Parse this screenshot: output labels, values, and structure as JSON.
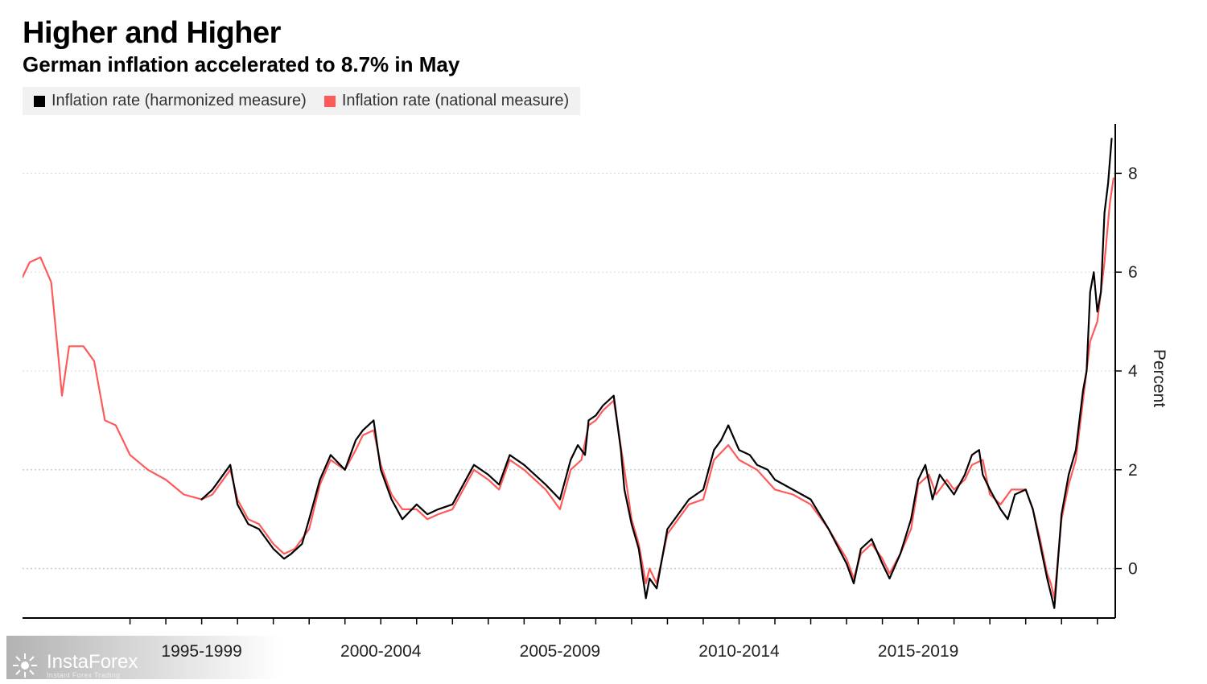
{
  "title": "Higher and Higher",
  "subtitle": "German inflation accelerated to 8.7% in May",
  "legend": {
    "series1": {
      "label": "Inflation rate (harmonized measure)",
      "color": "#000000"
    },
    "series2": {
      "label": "Inflation rate (national measure)",
      "color": "#ff5a5a"
    }
  },
  "watermark": {
    "main": "InstaForex",
    "sub": "Instant Forex Trading"
  },
  "chart": {
    "type": "line",
    "background_color": "#ffffff",
    "grid_color": "#d9d9d9",
    "grid_dash": "2,3",
    "reference_lines": [
      0,
      2
    ],
    "reference_color": "#c8c8c8",
    "axis_color": "#000000",
    "ylabel": "Percent",
    "ylim": [
      -1,
      9
    ],
    "yticks": [
      0,
      2,
      4,
      6,
      8
    ],
    "xlim": [
      1992,
      2022.5
    ],
    "xaxis_groups": [
      {
        "label": "1995-1999",
        "at": 1997
      },
      {
        "label": "2000-2004",
        "at": 2002
      },
      {
        "label": "2005-2009",
        "at": 2007
      },
      {
        "label": "2010-2014",
        "at": 2012
      },
      {
        "label": "2015-2019",
        "at": 2017
      }
    ],
    "tick_years": [
      1995,
      1996,
      1997,
      1998,
      1999,
      2000,
      2001,
      2002,
      2003,
      2004,
      2005,
      2006,
      2007,
      2008,
      2009,
      2010,
      2011,
      2012,
      2013,
      2014,
      2015,
      2016,
      2017,
      2018,
      2019,
      2020,
      2021,
      2022
    ],
    "line_width": 2.2,
    "title_fontsize": 38,
    "subtitle_fontsize": 26,
    "label_fontsize": 21,
    "series": {
      "national": {
        "color": "#ff5a5a",
        "data": [
          [
            1992.0,
            5.9
          ],
          [
            1992.2,
            6.2
          ],
          [
            1992.5,
            6.3
          ],
          [
            1992.8,
            5.8
          ],
          [
            1993.0,
            4.3
          ],
          [
            1993.1,
            3.5
          ],
          [
            1993.3,
            4.5
          ],
          [
            1993.7,
            4.5
          ],
          [
            1994.0,
            4.2
          ],
          [
            1994.3,
            3.0
          ],
          [
            1994.6,
            2.9
          ],
          [
            1995.0,
            2.3
          ],
          [
            1995.5,
            2.0
          ],
          [
            1996.0,
            1.8
          ],
          [
            1996.5,
            1.5
          ],
          [
            1997.0,
            1.4
          ],
          [
            1997.3,
            1.5
          ],
          [
            1997.5,
            1.7
          ],
          [
            1997.8,
            2.0
          ],
          [
            1998.0,
            1.4
          ],
          [
            1998.3,
            1.0
          ],
          [
            1998.6,
            0.9
          ],
          [
            1999.0,
            0.5
          ],
          [
            1999.3,
            0.3
          ],
          [
            1999.6,
            0.4
          ],
          [
            2000.0,
            0.8
          ],
          [
            2000.3,
            1.7
          ],
          [
            2000.6,
            2.2
          ],
          [
            2001.0,
            2.0
          ],
          [
            2001.3,
            2.4
          ],
          [
            2001.5,
            2.7
          ],
          [
            2001.8,
            2.8
          ],
          [
            2002.0,
            2.1
          ],
          [
            2002.3,
            1.5
          ],
          [
            2002.6,
            1.2
          ],
          [
            2003.0,
            1.2
          ],
          [
            2003.3,
            1.0
          ],
          [
            2003.6,
            1.1
          ],
          [
            2004.0,
            1.2
          ],
          [
            2004.3,
            1.6
          ],
          [
            2004.6,
            2.0
          ],
          [
            2005.0,
            1.8
          ],
          [
            2005.3,
            1.6
          ],
          [
            2005.6,
            2.2
          ],
          [
            2006.0,
            2.0
          ],
          [
            2006.3,
            1.8
          ],
          [
            2006.6,
            1.6
          ],
          [
            2007.0,
            1.2
          ],
          [
            2007.3,
            2.0
          ],
          [
            2007.6,
            2.2
          ],
          [
            2007.8,
            2.9
          ],
          [
            2008.0,
            3.0
          ],
          [
            2008.2,
            3.2
          ],
          [
            2008.5,
            3.4
          ],
          [
            2008.8,
            2.0
          ],
          [
            2009.0,
            1.0
          ],
          [
            2009.2,
            0.5
          ],
          [
            2009.4,
            -0.3
          ],
          [
            2009.5,
            0.0
          ],
          [
            2009.7,
            -0.3
          ],
          [
            2010.0,
            0.7
          ],
          [
            2010.3,
            1.0
          ],
          [
            2010.6,
            1.3
          ],
          [
            2011.0,
            1.4
          ],
          [
            2011.3,
            2.2
          ],
          [
            2011.7,
            2.5
          ],
          [
            2012.0,
            2.2
          ],
          [
            2012.5,
            2.0
          ],
          [
            2013.0,
            1.6
          ],
          [
            2013.5,
            1.5
          ],
          [
            2014.0,
            1.3
          ],
          [
            2014.5,
            0.8
          ],
          [
            2015.0,
            0.2
          ],
          [
            2015.2,
            -0.2
          ],
          [
            2015.4,
            0.3
          ],
          [
            2015.7,
            0.5
          ],
          [
            2016.0,
            0.2
          ],
          [
            2016.2,
            -0.1
          ],
          [
            2016.5,
            0.3
          ],
          [
            2016.8,
            0.8
          ],
          [
            2017.0,
            1.7
          ],
          [
            2017.3,
            1.9
          ],
          [
            2017.5,
            1.5
          ],
          [
            2017.8,
            1.8
          ],
          [
            2018.0,
            1.6
          ],
          [
            2018.3,
            1.8
          ],
          [
            2018.5,
            2.1
          ],
          [
            2018.8,
            2.2
          ],
          [
            2019.0,
            1.5
          ],
          [
            2019.3,
            1.3
          ],
          [
            2019.6,
            1.6
          ],
          [
            2020.0,
            1.6
          ],
          [
            2020.2,
            1.2
          ],
          [
            2020.4,
            0.6
          ],
          [
            2020.6,
            -0.1
          ],
          [
            2020.7,
            -0.3
          ],
          [
            2020.8,
            -0.6
          ],
          [
            2021.0,
            1.0
          ],
          [
            2021.2,
            1.7
          ],
          [
            2021.4,
            2.2
          ],
          [
            2021.6,
            3.4
          ],
          [
            2021.8,
            4.6
          ],
          [
            2022.0,
            5.0
          ],
          [
            2022.2,
            6.2
          ],
          [
            2022.35,
            7.4
          ],
          [
            2022.45,
            7.9
          ]
        ]
      },
      "harmonized": {
        "color": "#000000",
        "data": [
          [
            1997.0,
            1.4
          ],
          [
            1997.3,
            1.6
          ],
          [
            1997.5,
            1.8
          ],
          [
            1997.8,
            2.1
          ],
          [
            1998.0,
            1.3
          ],
          [
            1998.3,
            0.9
          ],
          [
            1998.6,
            0.8
          ],
          [
            1999.0,
            0.4
          ],
          [
            1999.3,
            0.2
          ],
          [
            1999.5,
            0.3
          ],
          [
            1999.8,
            0.5
          ],
          [
            2000.0,
            1.0
          ],
          [
            2000.3,
            1.8
          ],
          [
            2000.6,
            2.3
          ],
          [
            2001.0,
            2.0
          ],
          [
            2001.3,
            2.6
          ],
          [
            2001.5,
            2.8
          ],
          [
            2001.8,
            3.0
          ],
          [
            2002.0,
            2.0
          ],
          [
            2002.3,
            1.4
          ],
          [
            2002.6,
            1.0
          ],
          [
            2003.0,
            1.3
          ],
          [
            2003.3,
            1.1
          ],
          [
            2003.6,
            1.2
          ],
          [
            2004.0,
            1.3
          ],
          [
            2004.3,
            1.7
          ],
          [
            2004.6,
            2.1
          ],
          [
            2005.0,
            1.9
          ],
          [
            2005.3,
            1.7
          ],
          [
            2005.6,
            2.3
          ],
          [
            2006.0,
            2.1
          ],
          [
            2006.3,
            1.9
          ],
          [
            2006.6,
            1.7
          ],
          [
            2007.0,
            1.4
          ],
          [
            2007.3,
            2.2
          ],
          [
            2007.5,
            2.5
          ],
          [
            2007.7,
            2.3
          ],
          [
            2007.8,
            3.0
          ],
          [
            2008.0,
            3.1
          ],
          [
            2008.2,
            3.3
          ],
          [
            2008.5,
            3.5
          ],
          [
            2008.7,
            2.4
          ],
          [
            2008.8,
            1.6
          ],
          [
            2009.0,
            0.9
          ],
          [
            2009.2,
            0.4
          ],
          [
            2009.4,
            -0.6
          ],
          [
            2009.5,
            -0.2
          ],
          [
            2009.7,
            -0.4
          ],
          [
            2010.0,
            0.8
          ],
          [
            2010.3,
            1.1
          ],
          [
            2010.6,
            1.4
          ],
          [
            2011.0,
            1.6
          ],
          [
            2011.3,
            2.4
          ],
          [
            2011.5,
            2.6
          ],
          [
            2011.7,
            2.9
          ],
          [
            2012.0,
            2.4
          ],
          [
            2012.3,
            2.3
          ],
          [
            2012.5,
            2.1
          ],
          [
            2012.8,
            2.0
          ],
          [
            2013.0,
            1.8
          ],
          [
            2013.5,
            1.6
          ],
          [
            2014.0,
            1.4
          ],
          [
            2014.5,
            0.8
          ],
          [
            2015.0,
            0.1
          ],
          [
            2015.2,
            -0.3
          ],
          [
            2015.4,
            0.4
          ],
          [
            2015.7,
            0.6
          ],
          [
            2016.0,
            0.1
          ],
          [
            2016.2,
            -0.2
          ],
          [
            2016.5,
            0.3
          ],
          [
            2016.8,
            1.0
          ],
          [
            2017.0,
            1.8
          ],
          [
            2017.2,
            2.1
          ],
          [
            2017.4,
            1.4
          ],
          [
            2017.6,
            1.9
          ],
          [
            2018.0,
            1.5
          ],
          [
            2018.3,
            1.9
          ],
          [
            2018.5,
            2.3
          ],
          [
            2018.7,
            2.4
          ],
          [
            2018.8,
            1.9
          ],
          [
            2019.0,
            1.6
          ],
          [
            2019.3,
            1.2
          ],
          [
            2019.5,
            1.0
          ],
          [
            2019.7,
            1.5
          ],
          [
            2020.0,
            1.6
          ],
          [
            2020.2,
            1.2
          ],
          [
            2020.4,
            0.5
          ],
          [
            2020.6,
            -0.2
          ],
          [
            2020.7,
            -0.5
          ],
          [
            2020.8,
            -0.8
          ],
          [
            2021.0,
            1.1
          ],
          [
            2021.2,
            1.9
          ],
          [
            2021.4,
            2.4
          ],
          [
            2021.6,
            3.6
          ],
          [
            2021.7,
            4.0
          ],
          [
            2021.8,
            5.6
          ],
          [
            2021.9,
            6.0
          ],
          [
            2022.0,
            5.2
          ],
          [
            2022.1,
            5.6
          ],
          [
            2022.2,
            7.2
          ],
          [
            2022.3,
            7.8
          ],
          [
            2022.4,
            8.7
          ]
        ]
      }
    }
  }
}
